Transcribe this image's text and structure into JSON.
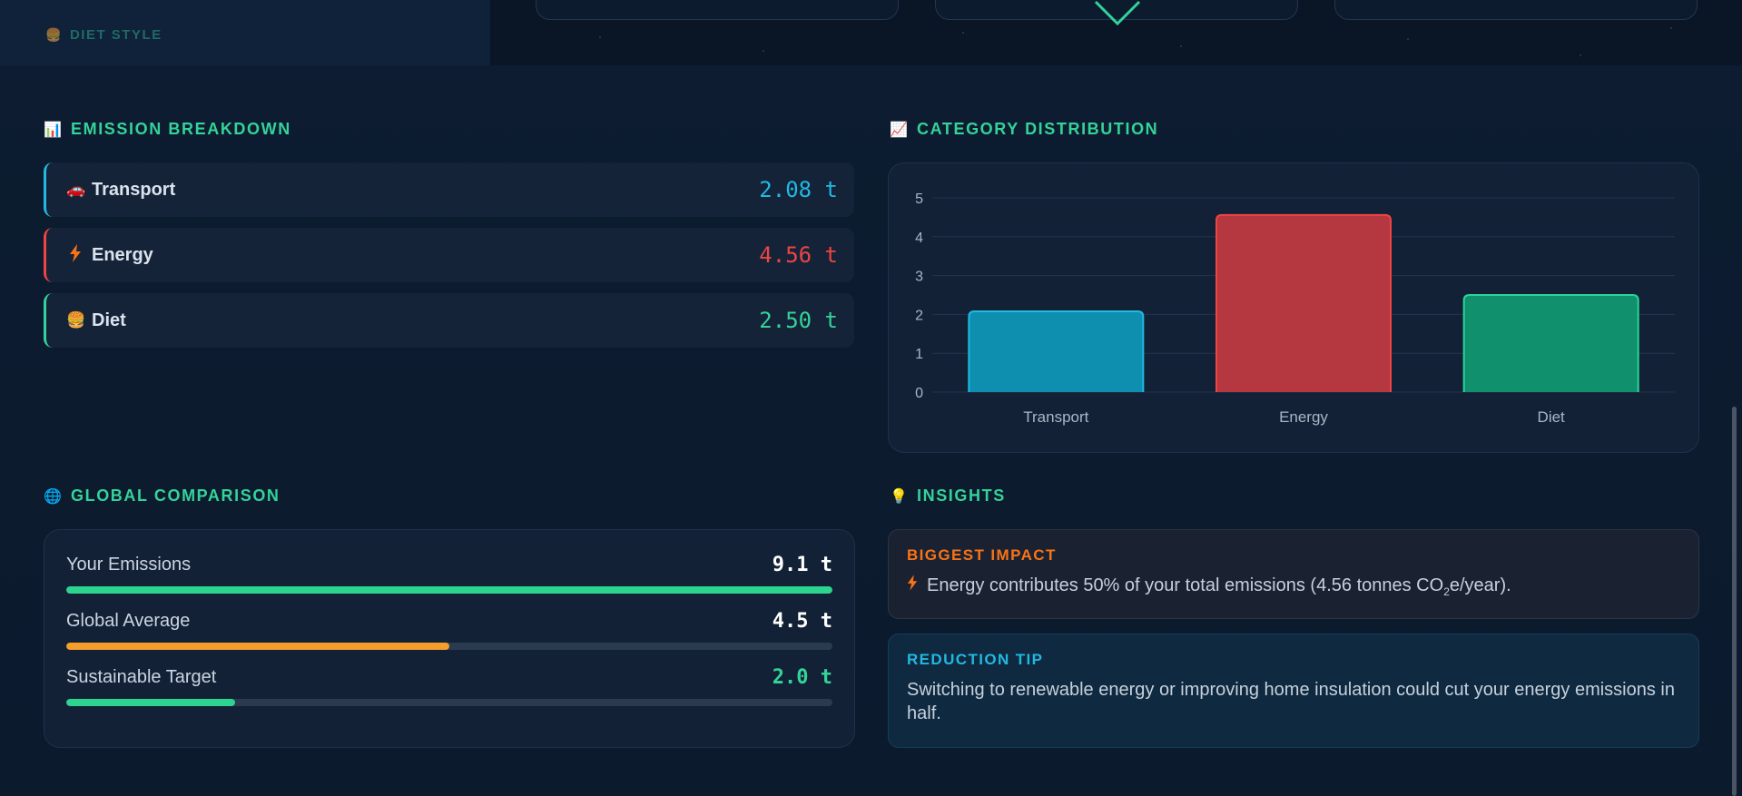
{
  "top": {
    "diet_style_label": "DIET STYLE",
    "diet_style_icon": "burger-icon"
  },
  "breakdown": {
    "title": "EMISSION BREAKDOWN",
    "icon": "bar-chart-icon",
    "items": [
      {
        "label": "Transport",
        "value": "2.08 t",
        "icon": "car-icon",
        "color": "#22b8e0"
      },
      {
        "label": "Energy",
        "value": "4.56 t",
        "icon": "lightning-icon",
        "color": "#ef4444"
      },
      {
        "label": "Diet",
        "value": "2.50 t",
        "icon": "burger-icon",
        "color": "#34d399"
      }
    ]
  },
  "distribution": {
    "title": "CATEGORY DISTRIBUTION",
    "icon": "trend-chart-icon"
  },
  "chart_data": {
    "type": "bar",
    "categories": [
      "Transport",
      "Energy",
      "Diet"
    ],
    "values": [
      2.08,
      4.56,
      2.5
    ],
    "colors": [
      "#0e8fb0",
      "#b5373f",
      "#10906c"
    ],
    "border_colors": [
      "#22b8e0",
      "#ef4444",
      "#2ad49b"
    ],
    "yticks": [
      0,
      1,
      2,
      3,
      4,
      5
    ],
    "ylim": [
      0,
      5
    ],
    "grid": true,
    "xlabel": "",
    "ylabel": ""
  },
  "comparison": {
    "title": "GLOBAL COMPARISON",
    "icon": "globe-icon",
    "items": [
      {
        "label": "Your Emissions",
        "value": "9.1 t",
        "fraction": 1.0,
        "color": "#2dd48f",
        "value_color": "#ffffff"
      },
      {
        "label": "Global Average",
        "value": "4.5 t",
        "fraction": 0.5,
        "color": "#f59e2e",
        "value_color": "#ffffff"
      },
      {
        "label": "Sustainable Target",
        "value": "2.0 t",
        "fraction": 0.22,
        "color": "#2dd48f",
        "value_color": "#34d399"
      }
    ]
  },
  "insights": {
    "title": "INSIGHTS",
    "icon": "lightbulb-icon",
    "biggest_impact": {
      "title": "BIGGEST IMPACT",
      "text_before": "Energy contributes 50% of your total emissions (4.56 tonnes CO",
      "subscript": "2",
      "text_after": "e/year).",
      "icon": "lightning-icon"
    },
    "reduction_tip": {
      "title": "REDUCTION TIP",
      "text": "Switching to renewable energy or improving home insulation could cut your energy emissions in half."
    }
  }
}
